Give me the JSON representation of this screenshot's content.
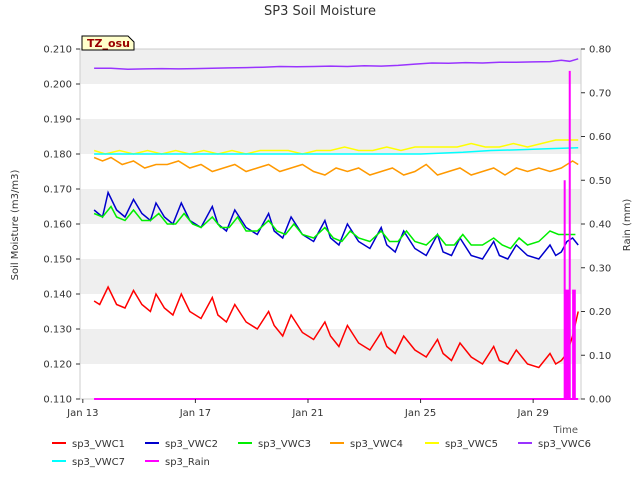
{
  "chart_data": {
    "type": "line",
    "title": "SP3 Soil Moisture",
    "station_label": "TZ_osu",
    "xlabel": "Time",
    "ylabel": "Soil Moisture (m3/m3)",
    "ylabel_right": "Rain (mm)",
    "xlim": [
      12.9,
      30.7
    ],
    "ylim": [
      0.11,
      0.21
    ],
    "ylim_right": [
      0.0,
      0.8
    ],
    "x_ticks": [
      {
        "value": 13,
        "label": "Jan 13"
      },
      {
        "value": 17,
        "label": "Jan 17"
      },
      {
        "value": 21,
        "label": "Jan 21"
      },
      {
        "value": 25,
        "label": "Jan 25"
      },
      {
        "value": 29,
        "label": "Jan 29"
      }
    ],
    "y_ticks": [
      "0.110",
      "0.120",
      "0.130",
      "0.140",
      "0.150",
      "0.160",
      "0.170",
      "0.180",
      "0.190",
      "0.200",
      "0.210"
    ],
    "y_ticks_right": [
      "0.00",
      "0.10",
      "0.20",
      "0.30",
      "0.40",
      "0.50",
      "0.60",
      "0.70",
      "0.80"
    ],
    "grid": "horizontal bands",
    "legend_position": "bottom",
    "series": [
      {
        "name": "sp3_VWC1",
        "color": "#ff0000",
        "axis": "left",
        "x": [
          13.4,
          13.6,
          13.9,
          14.2,
          14.5,
          14.8,
          15.1,
          15.4,
          15.6,
          15.9,
          16.2,
          16.5,
          16.8,
          17.2,
          17.6,
          17.8,
          18.1,
          18.4,
          18.8,
          19.2,
          19.6,
          19.8,
          20.1,
          20.4,
          20.8,
          21.2,
          21.6,
          21.8,
          22.1,
          22.4,
          22.8,
          23.2,
          23.6,
          23.8,
          24.1,
          24.4,
          24.8,
          25.2,
          25.6,
          25.8,
          26.1,
          26.4,
          26.8,
          27.2,
          27.6,
          27.8,
          28.1,
          28.4,
          28.8,
          29.2,
          29.6,
          29.8,
          30.0,
          30.2,
          30.4,
          30.6
        ],
        "values": [
          0.138,
          0.137,
          0.142,
          0.137,
          0.136,
          0.141,
          0.137,
          0.135,
          0.14,
          0.136,
          0.134,
          0.14,
          0.135,
          0.133,
          0.139,
          0.134,
          0.132,
          0.137,
          0.132,
          0.13,
          0.135,
          0.131,
          0.128,
          0.134,
          0.129,
          0.127,
          0.132,
          0.128,
          0.125,
          0.131,
          0.126,
          0.124,
          0.129,
          0.125,
          0.123,
          0.128,
          0.124,
          0.122,
          0.127,
          0.123,
          0.121,
          0.126,
          0.122,
          0.12,
          0.125,
          0.121,
          0.12,
          0.124,
          0.12,
          0.119,
          0.123,
          0.12,
          0.121,
          0.123,
          0.128,
          0.135
        ]
      },
      {
        "name": "sp3_VWC2",
        "color": "#0000cc",
        "axis": "left",
        "x": [
          13.4,
          13.7,
          13.9,
          14.2,
          14.5,
          14.8,
          15.1,
          15.4,
          15.6,
          15.9,
          16.2,
          16.5,
          16.8,
          17.2,
          17.6,
          17.8,
          18.1,
          18.4,
          18.8,
          19.2,
          19.6,
          19.8,
          20.1,
          20.4,
          20.8,
          21.2,
          21.6,
          21.8,
          22.1,
          22.4,
          22.8,
          23.2,
          23.6,
          23.8,
          24.1,
          24.4,
          24.8,
          25.2,
          25.6,
          25.8,
          26.1,
          26.4,
          26.8,
          27.2,
          27.6,
          27.8,
          28.1,
          28.4,
          28.8,
          29.2,
          29.6,
          29.8,
          30.0,
          30.2,
          30.4,
          30.6
        ],
        "values": [
          0.164,
          0.162,
          0.169,
          0.164,
          0.162,
          0.167,
          0.163,
          0.161,
          0.166,
          0.162,
          0.16,
          0.166,
          0.161,
          0.159,
          0.165,
          0.16,
          0.158,
          0.164,
          0.159,
          0.157,
          0.163,
          0.158,
          0.156,
          0.162,
          0.157,
          0.155,
          0.161,
          0.156,
          0.154,
          0.16,
          0.155,
          0.153,
          0.159,
          0.154,
          0.152,
          0.158,
          0.153,
          0.151,
          0.157,
          0.152,
          0.151,
          0.156,
          0.151,
          0.15,
          0.155,
          0.151,
          0.15,
          0.154,
          0.151,
          0.15,
          0.154,
          0.151,
          0.152,
          0.155,
          0.156,
          0.154
        ]
      },
      {
        "name": "sp3_VWC3",
        "color": "#00ee00",
        "axis": "left",
        "x": [
          13.4,
          13.7,
          14.0,
          14.2,
          14.5,
          14.8,
          15.1,
          15.4,
          15.7,
          16.0,
          16.3,
          16.6,
          16.9,
          17.2,
          17.6,
          17.9,
          18.2,
          18.5,
          18.8,
          19.2,
          19.6,
          19.9,
          20.2,
          20.5,
          20.8,
          21.2,
          21.6,
          21.9,
          22.2,
          22.5,
          22.8,
          23.2,
          23.6,
          23.9,
          24.2,
          24.5,
          24.8,
          25.2,
          25.6,
          25.9,
          26.2,
          26.5,
          26.8,
          27.2,
          27.6,
          27.9,
          28.2,
          28.5,
          28.8,
          29.2,
          29.6,
          29.9,
          30.2,
          30.5
        ],
        "values": [
          0.163,
          0.162,
          0.165,
          0.162,
          0.161,
          0.164,
          0.161,
          0.161,
          0.163,
          0.16,
          0.16,
          0.163,
          0.16,
          0.159,
          0.162,
          0.159,
          0.159,
          0.162,
          0.158,
          0.158,
          0.161,
          0.158,
          0.157,
          0.16,
          0.157,
          0.156,
          0.159,
          0.156,
          0.155,
          0.158,
          0.156,
          0.155,
          0.158,
          0.155,
          0.155,
          0.158,
          0.155,
          0.154,
          0.157,
          0.154,
          0.154,
          0.157,
          0.154,
          0.154,
          0.156,
          0.154,
          0.153,
          0.156,
          0.154,
          0.155,
          0.158,
          0.157,
          0.157,
          0.157
        ]
      },
      {
        "name": "sp3_VWC4",
        "color": "#ff9900",
        "axis": "left",
        "x": [
          13.4,
          13.7,
          14.0,
          14.4,
          14.8,
          15.2,
          15.6,
          16.0,
          16.4,
          16.8,
          17.2,
          17.6,
          18.0,
          18.4,
          18.8,
          19.2,
          19.6,
          20.0,
          20.4,
          20.8,
          21.2,
          21.6,
          22.0,
          22.4,
          22.8,
          23.2,
          23.6,
          24.0,
          24.4,
          24.8,
          25.2,
          25.6,
          26.0,
          26.4,
          26.8,
          27.2,
          27.6,
          28.0,
          28.4,
          28.8,
          29.2,
          29.6,
          30.0,
          30.2,
          30.4,
          30.6
        ],
        "values": [
          0.179,
          0.178,
          0.179,
          0.177,
          0.178,
          0.176,
          0.177,
          0.177,
          0.178,
          0.176,
          0.177,
          0.175,
          0.176,
          0.177,
          0.175,
          0.176,
          0.177,
          0.175,
          0.176,
          0.177,
          0.175,
          0.174,
          0.176,
          0.175,
          0.176,
          0.174,
          0.175,
          0.176,
          0.174,
          0.175,
          0.177,
          0.174,
          0.175,
          0.176,
          0.174,
          0.175,
          0.176,
          0.174,
          0.176,
          0.175,
          0.176,
          0.175,
          0.176,
          0.177,
          0.178,
          0.177
        ]
      },
      {
        "name": "sp3_VWC5",
        "color": "#ffff00",
        "axis": "left",
        "x": [
          13.4,
          13.8,
          14.3,
          14.8,
          15.3,
          15.8,
          16.3,
          16.8,
          17.3,
          17.8,
          18.3,
          18.8,
          19.3,
          19.8,
          20.3,
          20.8,
          21.3,
          21.8,
          22.3,
          22.8,
          23.3,
          23.8,
          24.3,
          24.8,
          25.3,
          25.8,
          26.3,
          26.8,
          27.3,
          27.8,
          28.3,
          28.8,
          29.3,
          29.8,
          30.2,
          30.6
        ],
        "values": [
          0.181,
          0.18,
          0.181,
          0.18,
          0.181,
          0.18,
          0.181,
          0.18,
          0.181,
          0.18,
          0.181,
          0.18,
          0.181,
          0.181,
          0.181,
          0.18,
          0.181,
          0.181,
          0.182,
          0.181,
          0.181,
          0.182,
          0.181,
          0.182,
          0.182,
          0.182,
          0.182,
          0.183,
          0.182,
          0.182,
          0.183,
          0.182,
          0.183,
          0.184,
          0.184,
          0.184
        ]
      },
      {
        "name": "sp3_VWC6",
        "color": "#9933ff",
        "axis": "left",
        "x": [
          13.4,
          14.0,
          14.6,
          15.2,
          15.8,
          16.4,
          17.0,
          17.6,
          18.2,
          18.8,
          19.4,
          20.0,
          20.6,
          21.2,
          21.8,
          22.4,
          23.0,
          23.6,
          24.2,
          24.8,
          25.4,
          26.0,
          26.6,
          27.2,
          27.8,
          28.4,
          29.0,
          29.6,
          30.0,
          30.3,
          30.6
        ],
        "values": [
          0.2045,
          0.2045,
          0.2042,
          0.2043,
          0.2044,
          0.2043,
          0.2044,
          0.2045,
          0.2046,
          0.2047,
          0.2048,
          0.205,
          0.2049,
          0.205,
          0.2051,
          0.205,
          0.2052,
          0.2051,
          0.2053,
          0.2057,
          0.206,
          0.2059,
          0.2061,
          0.206,
          0.2062,
          0.2062,
          0.2063,
          0.2064,
          0.2068,
          0.2065,
          0.2072
        ]
      },
      {
        "name": "sp3_VWC7",
        "color": "#00ffff",
        "axis": "left",
        "x": [
          13.4,
          14.5,
          16.0,
          17.5,
          19.0,
          20.5,
          22.0,
          23.5,
          25.0,
          26.5,
          27.5,
          28.5,
          29.5,
          30.6
        ],
        "values": [
          0.18,
          0.18,
          0.18,
          0.18,
          0.18,
          0.18,
          0.18,
          0.18,
          0.18,
          0.1805,
          0.181,
          0.1812,
          0.1815,
          0.1818
        ]
      },
      {
        "name": "sp3_Rain",
        "color": "#ff00ff",
        "axis": "right",
        "style": "impulse",
        "x": [
          13.4,
          30.05,
          30.12,
          30.18,
          30.24,
          30.3,
          30.36,
          30.42,
          30.48,
          30.54,
          30.6
        ],
        "values": [
          0.0,
          0.0,
          0.5,
          0.25,
          0.25,
          0.75,
          0.0,
          0.25,
          0.25,
          0.0,
          0.0
        ]
      }
    ]
  }
}
